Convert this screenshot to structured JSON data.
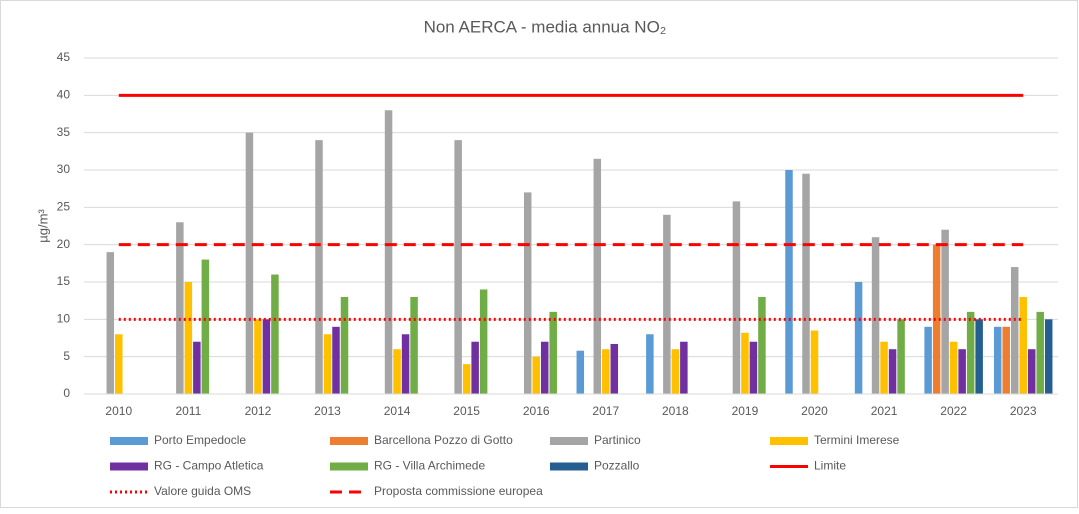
{
  "chart_data": {
    "type": "bar",
    "title": "Non AERCA - media annua NO₂",
    "y_label": "µg/m³",
    "categories": [
      "2010",
      "2011",
      "2012",
      "2013",
      "2014",
      "2015",
      "2016",
      "2017",
      "2018",
      "2019",
      "2020",
      "2021",
      "2022",
      "2023"
    ],
    "ylim": [
      0,
      45
    ],
    "yticks": [
      0,
      5,
      10,
      15,
      20,
      25,
      30,
      35,
      40,
      45
    ],
    "grid": true,
    "legend": "bottom",
    "series": [
      {
        "name": "Porto Empedocle",
        "color": "#5b9bd5",
        "values": [
          null,
          null,
          null,
          null,
          null,
          null,
          null,
          5.8,
          8,
          null,
          30,
          15,
          9,
          9
        ]
      },
      {
        "name": "Barcellona Pozzo di Gotto",
        "color": "#ed7d31",
        "values": [
          null,
          null,
          null,
          null,
          null,
          null,
          null,
          null,
          null,
          null,
          null,
          null,
          20,
          9
        ]
      },
      {
        "name": "Partinico",
        "color": "#a5a5a5",
        "values": [
          19,
          23,
          35,
          34,
          38,
          34,
          27,
          31.5,
          24,
          25.8,
          29.5,
          21,
          22,
          17
        ]
      },
      {
        "name": "Termini Imerese",
        "color": "#ffc000",
        "values": [
          8,
          15,
          10,
          8,
          6,
          4,
          5,
          6,
          6,
          8.2,
          8.5,
          7,
          7,
          13
        ]
      },
      {
        "name": "RG - Campo Atletica",
        "color": "#7030a0",
        "values": [
          null,
          7,
          10,
          9,
          8,
          7,
          7,
          6.7,
          7,
          7,
          null,
          6,
          6,
          6
        ]
      },
      {
        "name": "RG - Villa Archimede",
        "color": "#70ad47",
        "values": [
          null,
          18,
          16,
          13,
          13,
          14,
          11,
          null,
          null,
          13,
          null,
          10,
          11,
          11
        ]
      },
      {
        "name": "Pozzallo",
        "color": "#255e91",
        "values": [
          null,
          null,
          null,
          null,
          null,
          null,
          null,
          null,
          null,
          null,
          null,
          null,
          10,
          10
        ]
      }
    ],
    "lines": [
      {
        "name": "Limite",
        "color": "#ff0000",
        "style": "solid",
        "values": [
          40,
          40,
          40,
          40,
          40,
          40,
          40,
          40,
          40,
          40,
          40,
          40,
          40,
          40
        ]
      },
      {
        "name": "Valore guida OMS",
        "color": "#ff0000",
        "style": "dotted",
        "values": [
          10,
          10,
          10,
          10,
          10,
          10,
          10,
          10,
          10,
          10,
          10,
          10,
          10,
          10
        ]
      },
      {
        "name": "Proposta commissione europea",
        "color": "#ff0000",
        "style": "dashed",
        "values": [
          20,
          20,
          20,
          20,
          20,
          20,
          20,
          20,
          20,
          20,
          20,
          20,
          20,
          20
        ]
      }
    ]
  }
}
